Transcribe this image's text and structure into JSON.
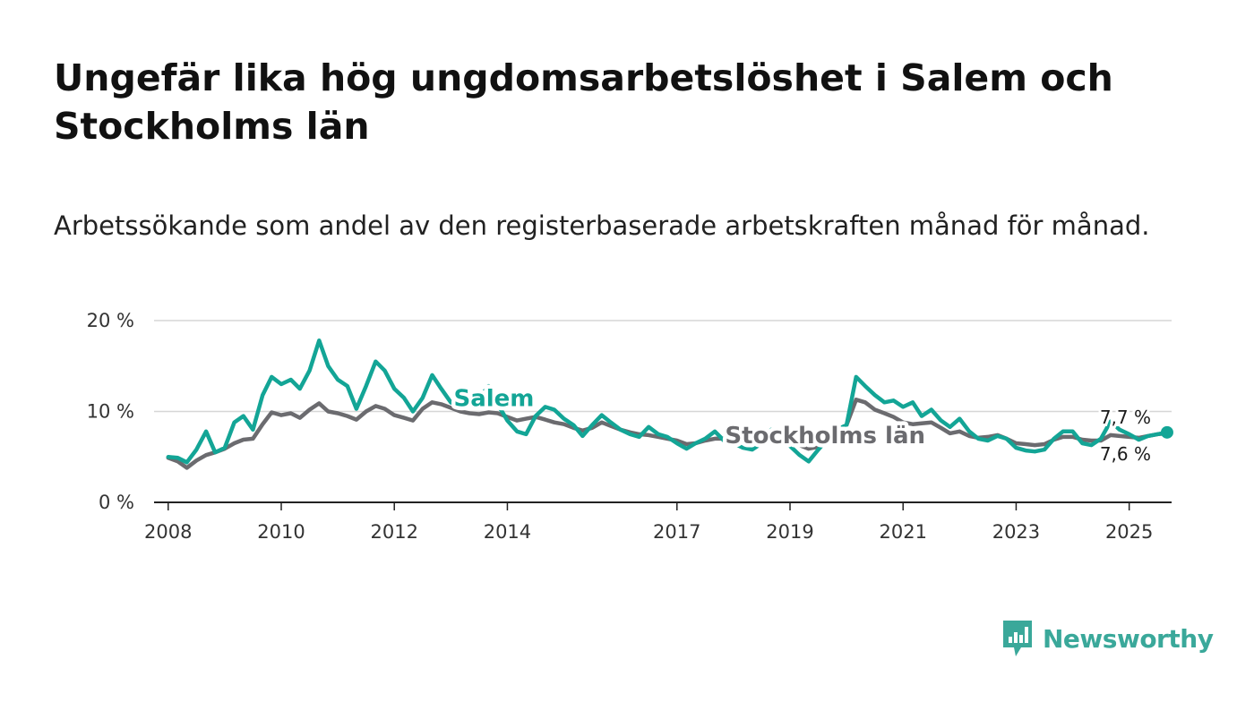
{
  "title": "Ungefär lika hög ungdomsarbetslöshet i Salem och Stockholms län",
  "subtitle": "Arbetssökande som andel av den registerbaserade arbetskraften månad för månad.",
  "brand": {
    "name": "Newsworthy",
    "color": "#3aa89a",
    "icon": "newsworthy-logo-icon"
  },
  "chart_data": {
    "type": "line",
    "title": "Ungefär lika hög ungdomsarbetslöshet i Salem och Stockholms län",
    "xlabel": "",
    "ylabel": "",
    "ylim": [
      0,
      20
    ],
    "xlim": [
      2007.75,
      2025.75
    ],
    "y_ticks": [
      0,
      10,
      20
    ],
    "y_tick_labels": [
      "0 %",
      "10 %",
      "20 %"
    ],
    "x_ticks": [
      2008,
      2010,
      2012,
      2014,
      2017,
      2019,
      2021,
      2023,
      2025
    ],
    "x_tick_labels": [
      "2008",
      "2010",
      "2012",
      "2014",
      "2017",
      "2019",
      "2021",
      "2023",
      "2025"
    ],
    "grid": true,
    "series": [
      {
        "name": "Salem",
        "label": "Salem",
        "color": "#13a596",
        "end_label": "7,7 %",
        "x": [
          2008.0,
          2008.17,
          2008.33,
          2008.5,
          2008.67,
          2008.83,
          2009.0,
          2009.17,
          2009.33,
          2009.5,
          2009.67,
          2009.83,
          2010.0,
          2010.17,
          2010.33,
          2010.5,
          2010.67,
          2010.83,
          2011.0,
          2011.17,
          2011.33,
          2011.5,
          2011.67,
          2011.83,
          2012.0,
          2012.17,
          2012.33,
          2012.5,
          2012.67,
          2012.83,
          2013.0,
          2013.17,
          2013.33,
          2013.5,
          2013.67,
          2013.83,
          2014.0,
          2014.17,
          2014.33,
          2014.5,
          2014.67,
          2014.83,
          2015.0,
          2015.17,
          2015.33,
          2015.5,
          2015.67,
          2015.83,
          2016.0,
          2016.17,
          2016.33,
          2016.5,
          2016.67,
          2016.83,
          2017.0,
          2017.17,
          2017.33,
          2017.5,
          2017.67,
          2017.83,
          2018.0,
          2018.17,
          2018.33,
          2018.5,
          2018.67,
          2018.83,
          2019.0,
          2019.17,
          2019.33,
          2019.5,
          2019.67,
          2019.83,
          2020.0,
          2020.17,
          2020.33,
          2020.5,
          2020.67,
          2020.83,
          2021.0,
          2021.17,
          2021.33,
          2021.5,
          2021.67,
          2021.83,
          2022.0,
          2022.17,
          2022.33,
          2022.5,
          2022.67,
          2022.83,
          2023.0,
          2023.17,
          2023.33,
          2023.5,
          2023.67,
          2023.83,
          2024.0,
          2024.17,
          2024.33,
          2024.5,
          2024.67,
          2024.83,
          2025.0,
          2025.17,
          2025.33,
          2025.5,
          2025.67
        ],
        "values": [
          5.0,
          4.9,
          4.4,
          5.8,
          7.8,
          5.5,
          6.0,
          8.8,
          9.5,
          8.0,
          11.8,
          13.8,
          13.0,
          13.5,
          12.5,
          14.5,
          17.8,
          15.0,
          13.5,
          12.8,
          10.3,
          12.8,
          15.5,
          14.5,
          12.5,
          11.5,
          10.0,
          11.5,
          14.0,
          12.5,
          11.0,
          10.5,
          11.0,
          11.5,
          12.8,
          10.8,
          9.0,
          7.8,
          7.5,
          9.5,
          10.5,
          10.2,
          9.2,
          8.5,
          7.3,
          8.5,
          9.6,
          8.8,
          8.0,
          7.5,
          7.2,
          8.3,
          7.5,
          7.2,
          6.5,
          5.9,
          6.5,
          7.0,
          7.8,
          6.8,
          6.5,
          6.0,
          5.8,
          6.5,
          8.0,
          7.5,
          6.2,
          5.2,
          4.5,
          5.8,
          7.0,
          8.0,
          8.5,
          13.8,
          12.8,
          11.8,
          11.0,
          11.2,
          10.5,
          11.0,
          9.5,
          10.2,
          9.0,
          8.3,
          9.2,
          7.8,
          7.0,
          6.8,
          7.3,
          7.0,
          6.0,
          5.7,
          5.6,
          5.8,
          7.0,
          7.8,
          7.8,
          6.5,
          6.3,
          7.0,
          8.9,
          8.0,
          7.5,
          6.9,
          7.3,
          7.5,
          7.7
        ]
      },
      {
        "name": "Stockholms län",
        "label": "Stockholms län",
        "color": "#6b6b6f",
        "end_label": "7,6 %",
        "x": [
          2008.0,
          2008.17,
          2008.33,
          2008.5,
          2008.67,
          2008.83,
          2009.0,
          2009.17,
          2009.33,
          2009.5,
          2009.67,
          2009.83,
          2010.0,
          2010.17,
          2010.33,
          2010.5,
          2010.67,
          2010.83,
          2011.0,
          2011.17,
          2011.33,
          2011.5,
          2011.67,
          2011.83,
          2012.0,
          2012.17,
          2012.33,
          2012.5,
          2012.67,
          2012.83,
          2013.0,
          2013.17,
          2013.33,
          2013.5,
          2013.67,
          2013.83,
          2014.0,
          2014.17,
          2014.33,
          2014.5,
          2014.67,
          2014.83,
          2015.0,
          2015.17,
          2015.33,
          2015.5,
          2015.67,
          2015.83,
          2016.0,
          2016.17,
          2016.33,
          2016.5,
          2016.67,
          2016.83,
          2017.0,
          2017.17,
          2017.33,
          2017.5,
          2017.67,
          2017.83,
          2018.0,
          2018.17,
          2018.33,
          2018.5,
          2018.67,
          2018.83,
          2019.0,
          2019.17,
          2019.33,
          2019.5,
          2019.67,
          2019.83,
          2020.0,
          2020.17,
          2020.33,
          2020.5,
          2020.67,
          2020.83,
          2021.0,
          2021.17,
          2021.33,
          2021.5,
          2021.67,
          2021.83,
          2022.0,
          2022.17,
          2022.33,
          2022.5,
          2022.67,
          2022.83,
          2023.0,
          2023.17,
          2023.33,
          2023.5,
          2023.67,
          2023.83,
          2024.0,
          2024.17,
          2024.33,
          2024.5,
          2024.67,
          2024.83,
          2025.0,
          2025.17,
          2025.33,
          2025.5,
          2025.67
        ],
        "values": [
          4.9,
          4.5,
          3.8,
          4.6,
          5.2,
          5.5,
          5.9,
          6.5,
          6.9,
          7.0,
          8.6,
          9.9,
          9.6,
          9.8,
          9.3,
          10.2,
          10.9,
          10.0,
          9.8,
          9.5,
          9.1,
          10.0,
          10.6,
          10.3,
          9.6,
          9.3,
          9.0,
          10.3,
          11.0,
          10.8,
          10.4,
          10.0,
          9.8,
          9.7,
          9.9,
          9.8,
          9.4,
          9.0,
          9.2,
          9.4,
          9.1,
          8.8,
          8.6,
          8.2,
          7.9,
          8.2,
          8.8,
          8.4,
          8.0,
          7.7,
          7.5,
          7.4,
          7.2,
          7.0,
          6.8,
          6.4,
          6.5,
          6.8,
          7.0,
          7.0,
          6.8,
          6.6,
          6.3,
          6.5,
          7.0,
          6.9,
          6.6,
          6.3,
          5.9,
          6.1,
          6.5,
          7.2,
          8.5,
          11.3,
          11.0,
          10.2,
          9.8,
          9.4,
          8.8,
          8.6,
          8.7,
          8.8,
          8.2,
          7.6,
          7.8,
          7.3,
          7.1,
          7.2,
          7.4,
          7.0,
          6.5,
          6.4,
          6.3,
          6.4,
          6.9,
          7.2,
          7.2,
          6.9,
          6.8,
          6.8,
          7.4,
          7.3,
          7.2,
          7.1,
          7.3,
          7.5,
          7.6
        ]
      }
    ]
  }
}
